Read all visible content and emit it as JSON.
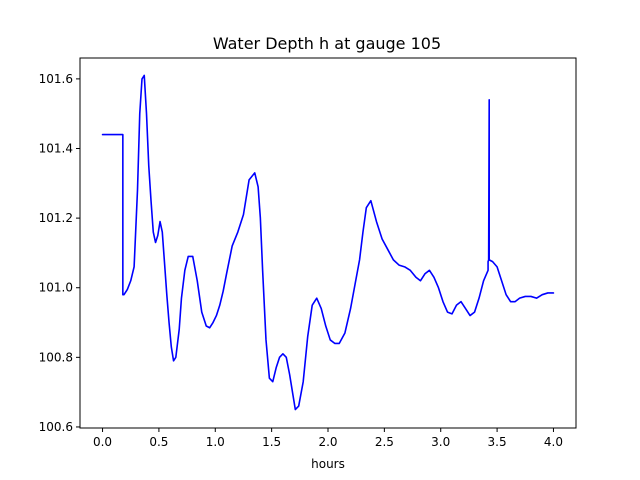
{
  "chart_data": {
    "type": "line",
    "title": "Water Depth h at gauge 105",
    "xlabel": "hours",
    "ylabel": "",
    "xlim": [
      -0.2,
      4.2
    ],
    "ylim": [
      100.597,
      101.66
    ],
    "xticks": [
      "0.0",
      "0.5",
      "1.0",
      "1.5",
      "2.0",
      "2.5",
      "3.0",
      "3.5",
      "4.0"
    ],
    "yticks": [
      "100.6",
      "100.8",
      "101.0",
      "101.2",
      "101.4",
      "101.6"
    ],
    "grid": false,
    "colors": {
      "line": "#0000ff"
    },
    "series": [
      {
        "x": [
          0.0,
          0.18,
          0.18,
          0.19,
          0.2,
          0.22,
          0.25,
          0.28,
          0.31,
          0.33,
          0.35,
          0.37,
          0.39,
          0.41,
          0.43,
          0.45,
          0.47,
          0.49,
          0.51,
          0.53,
          0.55,
          0.57,
          0.59,
          0.61,
          0.63,
          0.65,
          0.68,
          0.7,
          0.73,
          0.76,
          0.8,
          0.84,
          0.88,
          0.92,
          0.95,
          0.98,
          1.01,
          1.04,
          1.07,
          1.1,
          1.15,
          1.2,
          1.25,
          1.3,
          1.35,
          1.38,
          1.4,
          1.42,
          1.45,
          1.48,
          1.51,
          1.54,
          1.57,
          1.6,
          1.63,
          1.66,
          1.69,
          1.71,
          1.74,
          1.78,
          1.82,
          1.86,
          1.9,
          1.94,
          1.98,
          2.02,
          2.06,
          2.1,
          2.15,
          2.2,
          2.24,
          2.28,
          2.31,
          2.34,
          2.38,
          2.43,
          2.48,
          2.53,
          2.58,
          2.63,
          2.68,
          2.73,
          2.78,
          2.82,
          2.86,
          2.9,
          2.94,
          2.98,
          3.02,
          3.06,
          3.1,
          3.14,
          3.18,
          3.22,
          3.26,
          3.3,
          3.34,
          3.38,
          3.42,
          3.42,
          3.425,
          3.43,
          3.43,
          3.46,
          3.5,
          3.54,
          3.58,
          3.62,
          3.66,
          3.7,
          3.75,
          3.8,
          3.85,
          3.9,
          3.95,
          4.0
        ],
        "y": [
          101.44,
          101.44,
          100.98,
          100.98,
          100.985,
          100.995,
          101.02,
          101.06,
          101.28,
          101.5,
          101.6,
          101.61,
          101.5,
          101.35,
          101.25,
          101.16,
          101.13,
          101.15,
          101.19,
          101.16,
          101.07,
          100.98,
          100.9,
          100.83,
          100.79,
          100.8,
          100.88,
          100.97,
          101.05,
          101.09,
          101.09,
          101.02,
          100.93,
          100.89,
          100.885,
          100.9,
          100.92,
          100.95,
          100.99,
          101.04,
          101.12,
          101.16,
          101.21,
          101.31,
          101.33,
          101.29,
          101.2,
          101.05,
          100.85,
          100.74,
          100.73,
          100.77,
          100.8,
          100.81,
          100.8,
          100.75,
          100.69,
          100.65,
          100.66,
          100.73,
          100.86,
          100.95,
          100.97,
          100.94,
          100.89,
          100.85,
          100.84,
          100.84,
          100.87,
          100.94,
          101.01,
          101.08,
          101.16,
          101.23,
          101.25,
          101.19,
          101.14,
          101.11,
          101.08,
          101.065,
          101.06,
          101.05,
          101.03,
          101.02,
          101.04,
          101.05,
          101.03,
          101.0,
          100.96,
          100.93,
          100.925,
          100.95,
          100.96,
          100.94,
          100.92,
          100.93,
          100.97,
          101.02,
          101.05,
          101.075,
          101.08,
          101.54,
          101.08,
          101.075,
          101.06,
          101.02,
          100.98,
          100.96,
          100.96,
          100.97,
          100.975,
          100.975,
          100.97,
          100.98,
          100.985,
          100.985
        ]
      }
    ]
  }
}
